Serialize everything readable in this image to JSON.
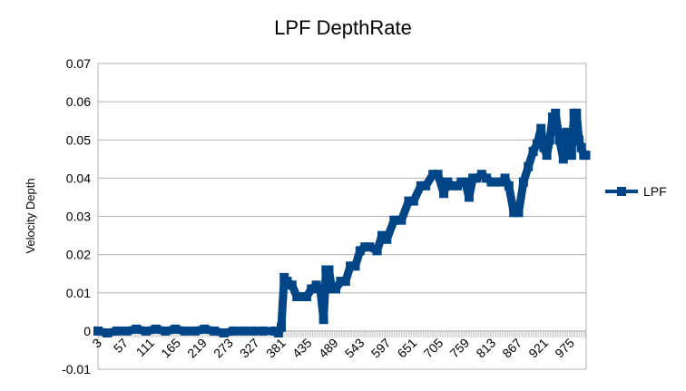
{
  "chart_data": {
    "type": "line",
    "title": "LPF DepthRate",
    "xlabel": "",
    "ylabel": "Velocity Depth",
    "ylim": [
      -0.01,
      0.07
    ],
    "yticks": [
      -0.01,
      0,
      0.01,
      0.02,
      0.03,
      0.04,
      0.05,
      0.06,
      0.07
    ],
    "ytick_labels": [
      "-0.01",
      "0",
      "0.01",
      "0.02",
      "0.03",
      "0.04",
      "0.05",
      "0.06",
      "0.07"
    ],
    "xlim": [
      1,
      1005
    ],
    "xtick_labels": [
      "3",
      "57",
      "111",
      "165",
      "219",
      "273",
      "327",
      "381",
      "435",
      "489",
      "543",
      "597",
      "651",
      "705",
      "759",
      "813",
      "867",
      "921",
      "975"
    ],
    "xtick_values": [
      3,
      57,
      111,
      165,
      219,
      273,
      327,
      381,
      435,
      489,
      543,
      597,
      651,
      705,
      759,
      813,
      867,
      921,
      975
    ],
    "grid": "horizontal",
    "legend_position": "right",
    "series": [
      {
        "name": "LPF",
        "color": "#004586",
        "marker": "square",
        "x": [
          1,
          20,
          40,
          60,
          80,
          100,
          120,
          140,
          160,
          180,
          200,
          220,
          240,
          260,
          280,
          300,
          320,
          340,
          365,
          372,
          378,
          384,
          390,
          400,
          410,
          420,
          430,
          440,
          450,
          458,
          465,
          470,
          476,
          482,
          490,
          500,
          510,
          520,
          530,
          540,
          550,
          560,
          575,
          585,
          595,
          610,
          625,
          640,
          650,
          665,
          675,
          690,
          700,
          712,
          720,
          730,
          740,
          748,
          756,
          764,
          772,
          780,
          790,
          800,
          810,
          820,
          830,
          838,
          846,
          856,
          866,
          876,
          886,
          896,
          904,
          912,
          918,
          924,
          930,
          936,
          942,
          950,
          958,
          965,
          970,
          975,
          980,
          985,
          990,
          995,
          1000,
          1004
        ],
        "y": [
          0.0,
          -0.0005,
          0.0,
          0.0,
          0.0005,
          0.0,
          0.0005,
          0.0,
          0.0005,
          0.0,
          0.0,
          0.0005,
          0.0,
          -0.0005,
          0.0,
          0.0,
          0.0,
          0.0,
          0.0,
          -0.0005,
          0.001,
          0.014,
          0.013,
          0.012,
          0.009,
          0.009,
          0.009,
          0.011,
          0.012,
          0.011,
          0.003,
          0.016,
          0.016,
          0.011,
          0.011,
          0.013,
          0.013,
          0.017,
          0.017,
          0.021,
          0.022,
          0.022,
          0.021,
          0.025,
          0.024,
          0.029,
          0.029,
          0.034,
          0.034,
          0.038,
          0.038,
          0.041,
          0.041,
          0.036,
          0.039,
          0.038,
          0.038,
          0.039,
          0.039,
          0.035,
          0.04,
          0.04,
          0.041,
          0.04,
          0.039,
          0.039,
          0.039,
          0.04,
          0.038,
          0.031,
          0.031,
          0.039,
          0.043,
          0.047,
          0.049,
          0.053,
          0.048,
          0.046,
          0.05,
          0.056,
          0.057,
          0.05,
          0.045,
          0.052,
          0.046,
          0.046,
          0.057,
          0.057,
          0.05,
          0.048,
          0.046,
          0.046
        ]
      }
    ]
  }
}
